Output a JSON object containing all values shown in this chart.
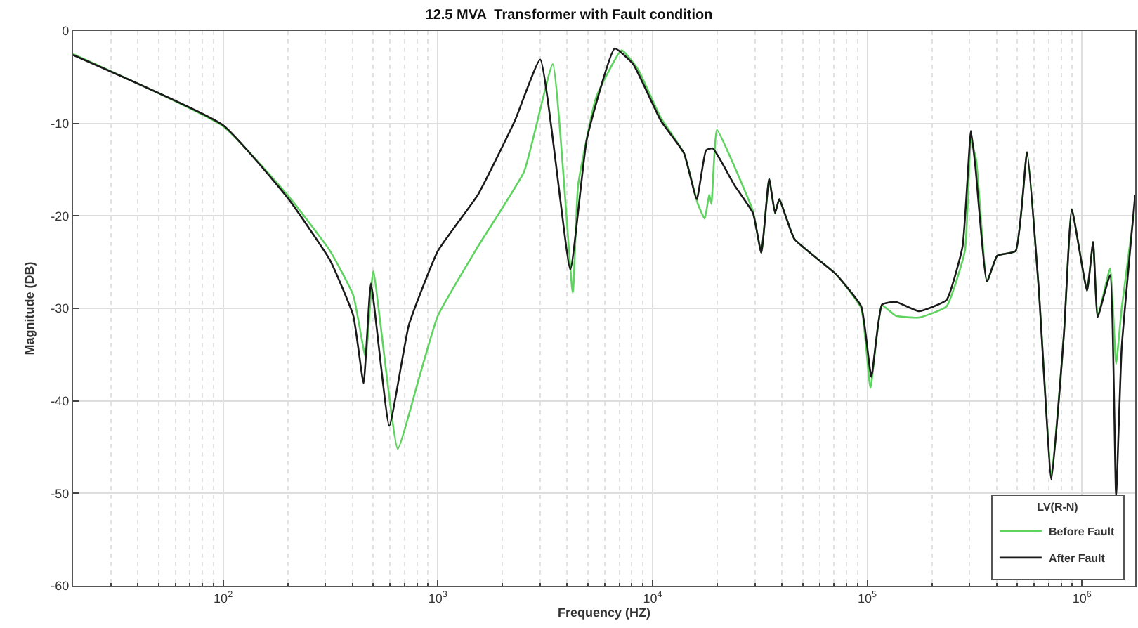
{
  "chart_data": {
    "type": "line",
    "title": "12.5 MVA  Transformer with Fault condition",
    "xlabel": "Frequency (HZ)",
    "ylabel": "Magnitude (DB)",
    "legend_title": "LV(R-N)",
    "legend": "bottom right",
    "grid": true,
    "log": "x",
    "line_style": "solid",
    "marker": "none",
    "xlim": [
      20,
      1770000
    ],
    "ylim": [
      -60,
      0
    ],
    "xticks": [
      {
        "value": 100,
        "label": "10$^{2}$"
      },
      {
        "value": 1000,
        "label": "10$^{3}$"
      },
      {
        "value": 10000,
        "label": "10$^{4}$"
      },
      {
        "value": 100000,
        "label": "10$^{5}$"
      },
      {
        "value": 1000000,
        "label": "10$^{6}$"
      }
    ],
    "yticks": [
      -60,
      -50,
      -40,
      -30,
      -20,
      -10,
      0
    ],
    "series": [
      {
        "name": "Before Fault",
        "color": "#5fd35f",
        "x": [
          20,
          100,
          202,
          315,
          404,
          461,
          500,
          650,
          809,
          1000,
          1538,
          2523,
          3430,
          4250,
          4500,
          5460,
          7180,
          8530,
          10930,
          14000,
          16250,
          17500,
          18360,
          18800,
          19950,
          24100,
          29370,
          32100,
          34900,
          37200,
          38900,
          45800,
          71500,
          93800,
          103500,
          117100,
          135900,
          173900,
          233800,
          285000,
          304000,
          322000,
          361000,
          403000,
          491000,
          555000,
          629000,
          721000,
          824000,
          897000,
          1056000,
          1127000,
          1184000,
          1352000,
          1442000,
          1531000,
          1770000
        ],
        "values": [
          -2.5,
          -10.3,
          -17.9,
          -23.8,
          -28.6,
          -35.3,
          -26,
          -45.2,
          -37.9,
          -30.8,
          -23.3,
          -15.2,
          -3.6,
          -28.3,
          -16.7,
          -7.2,
          -2.1,
          -4.1,
          -9.4,
          -13.2,
          -18.7,
          -20.3,
          -17.7,
          -18.7,
          -10.7,
          -14.7,
          -19.5,
          -24,
          -16,
          -19.7,
          -18.2,
          -22.5,
          -26.3,
          -30,
          -38.6,
          -29.7,
          -30.8,
          -31,
          -29.8,
          -23.8,
          -11.7,
          -14,
          -27.1,
          -24.3,
          -23.8,
          -13.1,
          -27.8,
          -48,
          -32.8,
          -19.3,
          -28.1,
          -22.8,
          -30.9,
          -25.7,
          -36,
          -30,
          -18.7
        ]
      },
      {
        "name": "After Fault",
        "color": "#1a1a1a",
        "x": [
          20,
          100,
          202,
          315,
          404,
          451,
          488,
          594,
          733,
          1000,
          1538,
          2285,
          3000,
          4140,
          4944,
          6670,
          8128,
          10930,
          14000,
          16070,
          17750,
          19100,
          24100,
          29370,
          32100,
          34900,
          37200,
          38900,
          45800,
          71500,
          93800,
          104500,
          117100,
          135900,
          173900,
          233800,
          278000,
          304000,
          319000,
          361000,
          403000,
          491000,
          555000,
          629000,
          721000,
          824000,
          897000,
          1056000,
          1127000,
          1184000,
          1352000,
          1442000,
          1531000,
          1770000
        ],
        "values": [
          -2.6,
          -10.2,
          -18.2,
          -24.8,
          -30.8,
          -38.1,
          -27.3,
          -42.7,
          -31.8,
          -23.8,
          -17.7,
          -9.7,
          -3.1,
          -25.8,
          -11.7,
          -1.9,
          -3.6,
          -9.7,
          -13.2,
          -18.2,
          -12.9,
          -12.7,
          -16.7,
          -19.7,
          -24,
          -16,
          -19.7,
          -18.2,
          -22.5,
          -26.3,
          -29.8,
          -37.4,
          -29.6,
          -29.3,
          -30.3,
          -29.1,
          -23.3,
          -10.8,
          -14.7,
          -27.1,
          -24.3,
          -23.8,
          -13.1,
          -27.8,
          -48.5,
          -32.8,
          -19.3,
          -28.1,
          -22.8,
          -30.9,
          -26.4,
          -50.2,
          -34.3,
          -17.7
        ]
      }
    ]
  }
}
